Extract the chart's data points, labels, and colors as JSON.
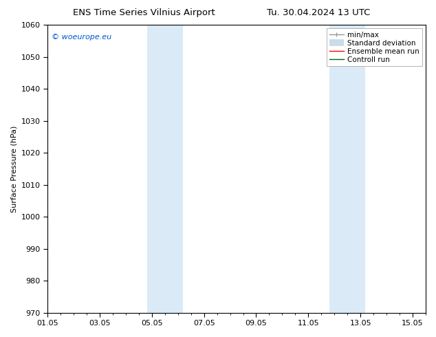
{
  "title_left": "ENS Time Series Vilnius Airport",
  "title_right": "Tu. 30.04.2024 13 UTC",
  "ylabel": "Surface Pressure (hPa)",
  "watermark": "© woeurope.eu",
  "watermark_color": "#0055cc",
  "ylim": [
    970,
    1060
  ],
  "yticks": [
    970,
    980,
    990,
    1000,
    1010,
    1020,
    1030,
    1040,
    1050,
    1060
  ],
  "xtick_labels": [
    "01.05",
    "03.05",
    "05.05",
    "07.05",
    "09.05",
    "11.05",
    "13.05",
    "15.05"
  ],
  "xtick_positions": [
    0,
    2,
    4,
    6,
    8,
    10,
    12,
    14
  ],
  "xlim": [
    0,
    14.5
  ],
  "shaded_regions": [
    {
      "x_start": 3.82,
      "x_end": 5.18,
      "color": "#daeaf7"
    },
    {
      "x_start": 10.82,
      "x_end": 12.18,
      "color": "#daeaf7"
    }
  ],
  "legend_entries": [
    {
      "label": "min/max",
      "color": "#aaaaaa",
      "lw": 1.0
    },
    {
      "label": "Standard deviation",
      "color": "#c8dcea",
      "lw": 6
    },
    {
      "label": "Ensemble mean run",
      "color": "#ff0000",
      "lw": 1.0
    },
    {
      "label": "Controll run",
      "color": "#006600",
      "lw": 1.0
    }
  ],
  "bg_color": "#ffffff",
  "spine_color": "#000000",
  "title_fontsize": 9.5,
  "tick_fontsize": 8,
  "legend_fontsize": 7.5,
  "ylabel_fontsize": 8
}
